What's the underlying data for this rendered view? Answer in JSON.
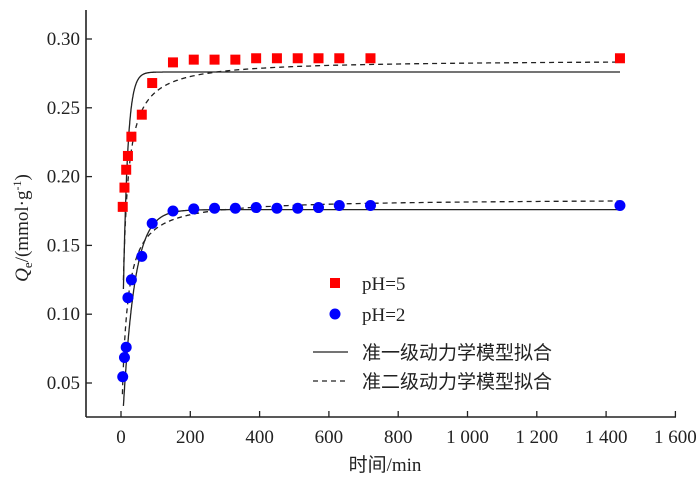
{
  "chart_data": {
    "type": "scatter",
    "title": "",
    "xlabel": "时间/min",
    "ylabel": {
      "main": "Q",
      "sub": "e",
      "unit": "/(mmol·g",
      "sup": "-1",
      "close": ")"
    },
    "xlim": [
      -100,
      1600
    ],
    "ylim": [
      0.025,
      0.32
    ],
    "xticks": [
      0,
      200,
      400,
      600,
      800,
      1000,
      1200,
      1400,
      1600
    ],
    "xtick_labels": [
      "0",
      "200",
      "400",
      "600",
      "800",
      "1 000",
      "1 200",
      "1 400",
      "1 600"
    ],
    "yticks": [
      0.05,
      0.1,
      0.15,
      0.2,
      0.25,
      0.3
    ],
    "ytick_labels": [
      "0.05",
      "0.10",
      "0.15",
      "0.20",
      "0.25",
      "0.30"
    ],
    "grid": false,
    "legend_position": "center-right",
    "series": [
      {
        "name": "pH=5",
        "marker": "square",
        "color": "#ff0000",
        "x": [
          5,
          10,
          15,
          20,
          30,
          60,
          90,
          150,
          210,
          270,
          330,
          390,
          450,
          510,
          570,
          630,
          720,
          1440
        ],
        "y": [
          0.178,
          0.192,
          0.205,
          0.215,
          0.229,
          0.245,
          0.268,
          0.283,
          0.285,
          0.285,
          0.285,
          0.286,
          0.286,
          0.286,
          0.286,
          0.286,
          0.286,
          0.286
        ]
      },
      {
        "name": "pH=2",
        "marker": "circle",
        "color": "#0000ff",
        "x": [
          5,
          10,
          15,
          20,
          30,
          60,
          90,
          150,
          210,
          270,
          330,
          390,
          450,
          510,
          570,
          630,
          720,
          1440
        ],
        "y": [
          0.0545,
          0.0685,
          0.076,
          0.112,
          0.125,
          0.142,
          0.166,
          0.175,
          0.1765,
          0.177,
          0.177,
          0.1775,
          0.177,
          0.177,
          0.1775,
          0.179,
          0.179,
          0.179
        ]
      }
    ],
    "fits": [
      {
        "name": "准一级动力学模型拟合",
        "style": "solid",
        "color": "#222222",
        "curves": [
          {
            "for": "pH=5",
            "model": "pseudo-first-order",
            "qe": 0.276,
            "k": 0.08,
            "t_range": [
              7,
              1440
            ]
          },
          {
            "for": "pH=2",
            "model": "pseudo-first-order",
            "qe": 0.176,
            "k": 0.03,
            "t_range": [
              7,
              1440
            ]
          }
        ]
      },
      {
        "name": "准二级动力学模型拟合",
        "style": "dashed",
        "color": "#222222",
        "curves": [
          {
            "for": "pH=5",
            "model": "pseudo-second-order",
            "qe": 0.285,
            "k": 0.39,
            "t_range": [
              7,
              1440
            ]
          },
          {
            "for": "pH=2",
            "model": "pseudo-second-order",
            "qe": 0.184,
            "k": 0.4,
            "t_range": [
              4,
              1440
            ]
          }
        ]
      }
    ],
    "legend": [
      "pH=5",
      "pH=2",
      "准一级动力学模型拟合",
      "准二级动力学模型拟合"
    ]
  }
}
